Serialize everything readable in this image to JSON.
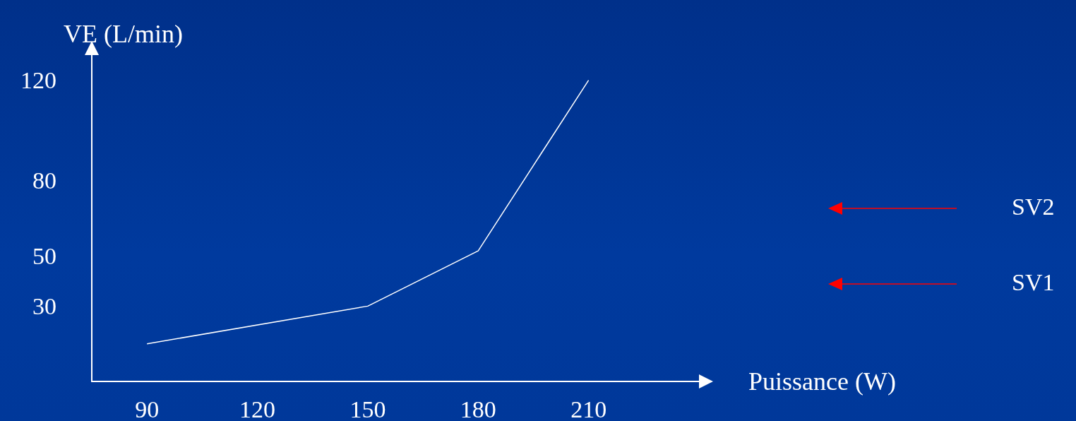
{
  "chart_data": {
    "type": "line",
    "xlabel": "Puissance (W)",
    "ylabel": "VE (L/min)",
    "x": [
      90,
      150,
      180,
      210
    ],
    "series": [
      {
        "color": "#ffffff",
        "values": [
          15,
          30,
          52,
          120
        ]
      }
    ],
    "xlim": [
      75,
      240
    ],
    "xticks": [
      90,
      120,
      150,
      180,
      210
    ],
    "ylim": [
      0,
      130
    ],
    "yticks": [
      30,
      50,
      80,
      120
    ],
    "grid": false,
    "marker": "none",
    "line_style": "solid",
    "annotations": [
      "SV2",
      "SV1"
    ]
  }
}
